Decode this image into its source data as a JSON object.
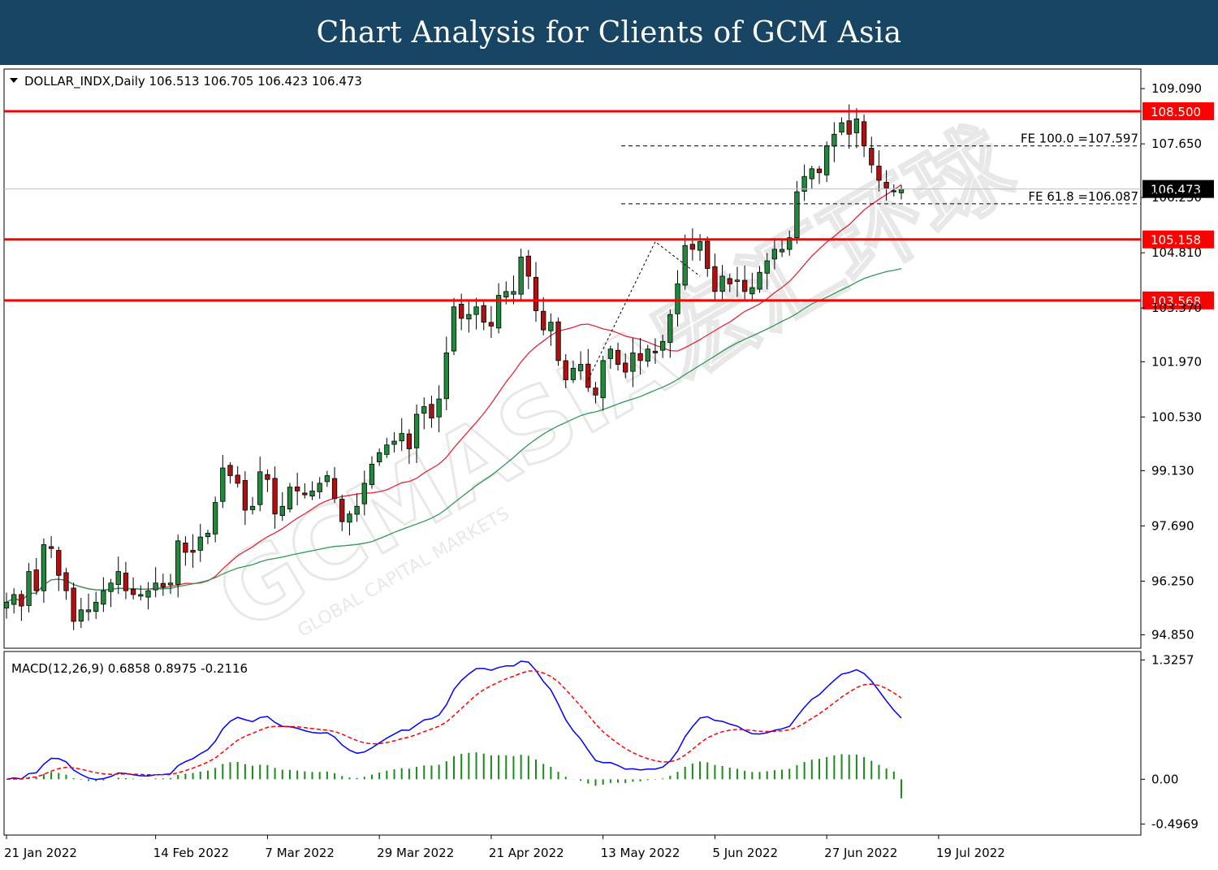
{
  "header": {
    "title": "Chart Analysis for Clients of GCM Asia"
  },
  "chart_data": {
    "type": "candlestick",
    "symbol_info": "DOLLAR_INDX,Daily  106.513 106.705 106.423 106.473",
    "ohlc": {
      "open": 106.513,
      "high": 106.705,
      "low": 106.423,
      "close": 106.473
    },
    "price_axis": {
      "ylim": [
        94.5,
        109.6
      ],
      "ticks": [
        "109.090",
        "107.650",
        "106.250",
        "104.810",
        "103.370",
        "101.970",
        "100.530",
        "99.130",
        "97.690",
        "96.250",
        "94.850"
      ],
      "tick_values": [
        109.09,
        107.65,
        106.25,
        104.81,
        103.37,
        101.97,
        100.53,
        99.13,
        97.69,
        96.25,
        94.85
      ]
    },
    "x_axis": {
      "labels": [
        "21 Jan 2022",
        "14 Feb 2022",
        "7 Mar 2022",
        "29 Mar 2022",
        "21 Apr 2022",
        "13 May 2022",
        "5 Jun 2022",
        "27 Jun 2022",
        "19 Jul 2022"
      ],
      "label_bar_index": [
        0,
        20,
        35,
        50,
        65,
        80,
        95,
        110,
        125
      ]
    },
    "current_price": {
      "value": 106.473,
      "label": "106.473"
    },
    "levels": [
      {
        "value": 108.5,
        "label": "108.500",
        "color": "#ff0000"
      },
      {
        "value": 105.158,
        "label": "105.158",
        "color": "#ff0000"
      },
      {
        "value": 103.568,
        "label": "103.568",
        "color": "#ff0000"
      }
    ],
    "fibonacci": [
      {
        "value": 107.597,
        "label": "FE 100.0 =107.597"
      },
      {
        "value": 106.087,
        "label": "FE 61.8 =106.087"
      }
    ],
    "moving_averages": [
      {
        "color": "#e0283c",
        "period": 20
      },
      {
        "color": "#2e9a55",
        "period": 50
      }
    ],
    "candles_close": [
      95.7,
      95.9,
      95.6,
      96.5,
      96.0,
      97.2,
      97.1,
      96.4,
      96.0,
      95.2,
      95.5,
      95.5,
      95.7,
      96.0,
      96.2,
      96.5,
      96.0,
      95.9,
      95.9,
      96.0,
      96.2,
      96.1,
      96.2,
      97.3,
      97.0,
      97.0,
      97.4,
      97.5,
      98.3,
      99.2,
      99.0,
      98.8,
      98.1,
      98.2,
      99.1,
      98.9,
      98.0,
      98.2,
      98.7,
      98.6,
      98.5,
      98.6,
      98.8,
      99.0,
      98.4,
      97.8,
      98.0,
      98.2,
      98.8,
      99.3,
      99.6,
      99.8,
      99.9,
      100.1,
      99.7,
      100.6,
      100.8,
      100.5,
      101.0,
      102.2,
      103.4,
      103.1,
      103.2,
      103.4,
      103.0,
      102.9,
      103.7,
      103.8,
      103.8,
      104.7,
      104.2,
      103.3,
      102.8,
      103.0,
      102.0,
      101.5,
      101.8,
      101.9,
      101.3,
      101.1,
      102.0,
      102.3,
      101.9,
      101.7,
      102.2,
      102.0,
      102.3,
      102.2,
      102.5,
      103.2,
      104.0,
      105.0,
      104.9,
      105.1,
      104.4,
      103.8,
      104.2,
      104.0,
      104.1,
      103.8,
      103.9,
      104.3,
      104.6,
      104.9,
      104.9,
      105.2,
      106.4,
      106.8,
      107.0,
      106.9,
      107.6,
      107.9,
      108.2,
      107.9,
      108.3,
      107.6,
      107.1,
      106.7,
      106.5,
      106.4,
      106.47
    ],
    "macd": {
      "label": "MACD(12,26,9) 0.6858 0.8975 -0.2116",
      "params": "12,26,9",
      "main": 0.6858,
      "signal": 0.8975,
      "histogram": -0.2116,
      "ylim": [
        -0.62,
        1.42
      ],
      "ticks": [
        "1.3257",
        "0.00",
        "-0.4969"
      ],
      "tick_values": [
        1.3257,
        0.0,
        -0.4969
      ],
      "colors": {
        "main": "#0000ff",
        "signal": "#ff0000",
        "histogram": "#1a8a1a"
      }
    }
  }
}
